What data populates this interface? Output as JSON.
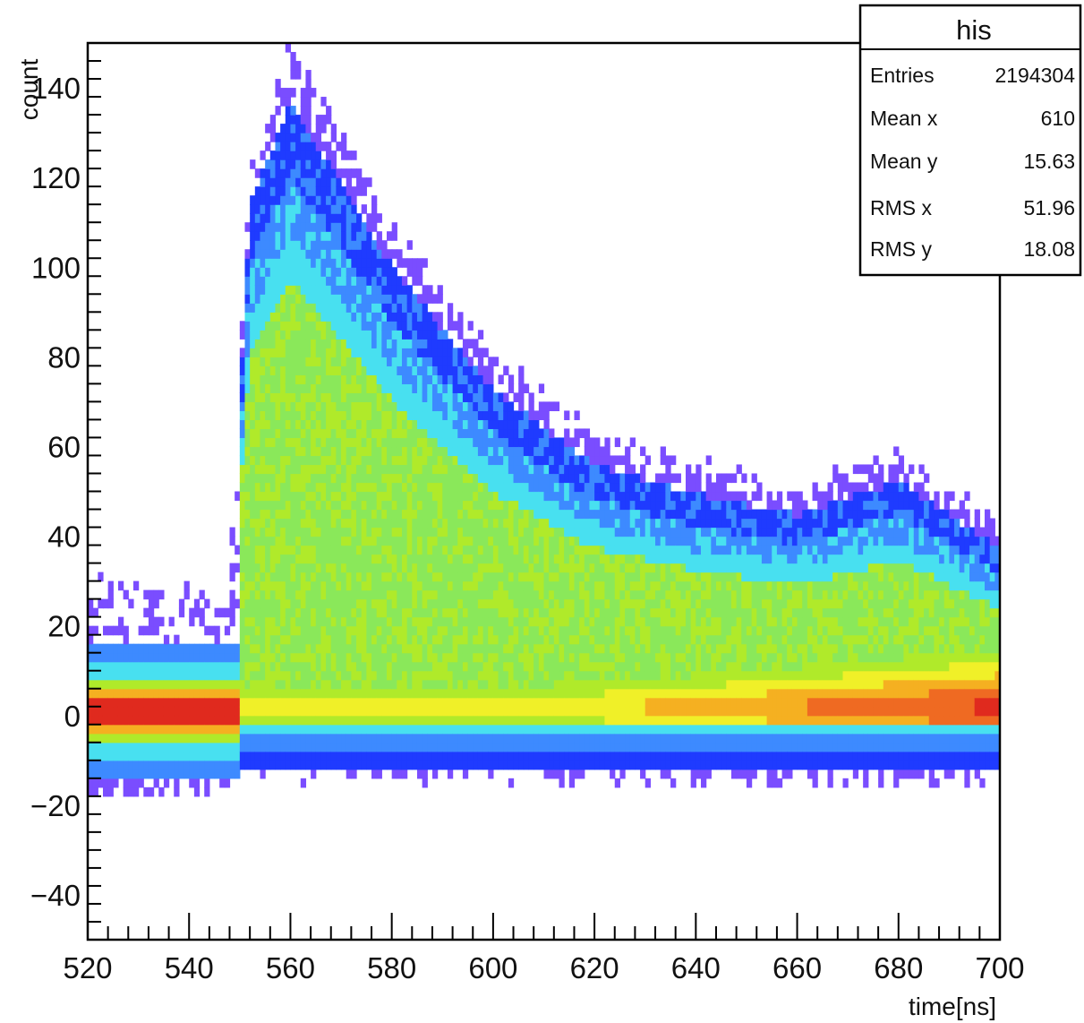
{
  "chart_data": {
    "type": "heatmap",
    "title": "",
    "xlabel": "time[ns]",
    "ylabel": "count",
    "xlim": [
      520,
      700
    ],
    "ylim": [
      -50,
      150
    ],
    "x_ticks": [
      520,
      540,
      560,
      580,
      600,
      620,
      640,
      660,
      680,
      700
    ],
    "y_ticks": [
      -40,
      -20,
      0,
      20,
      40,
      60,
      80,
      100,
      120,
      140
    ],
    "bin_width_x": 1,
    "bin_width_y": 2,
    "palette": [
      "#7a4dff",
      "#1f3bff",
      "#3d8aff",
      "#48e0f0",
      "#8ae85a",
      "#b0ea2a",
      "#f0f028",
      "#f5b021",
      "#ef6a22",
      "#e02a1e"
    ],
    "description_points": [
      {
        "x": 520,
        "y_core": 1,
        "y_max": 30,
        "y_min": -18
      },
      {
        "x": 548,
        "y_core": 1,
        "y_max": 28,
        "y_min": -16
      },
      {
        "x": 552,
        "y_core": 40,
        "y_max": 125,
        "y_min": -12
      },
      {
        "x": 560,
        "y_core": 35,
        "y_max": 150,
        "y_min": -14
      },
      {
        "x": 580,
        "y_core": 25,
        "y_max": 110,
        "y_min": -14
      },
      {
        "x": 600,
        "y_core": 18,
        "y_max": 80,
        "y_min": -14
      },
      {
        "x": 620,
        "y_core": 12,
        "y_max": 62,
        "y_min": -15
      },
      {
        "x": 640,
        "y_core": 8,
        "y_max": 55,
        "y_min": -15
      },
      {
        "x": 660,
        "y_core": 5,
        "y_max": 50,
        "y_min": -15
      },
      {
        "x": 680,
        "y_core": 3,
        "y_max": 58,
        "y_min": -15
      },
      {
        "x": 700,
        "y_core": 2,
        "y_max": 42,
        "y_min": -15
      }
    ]
  },
  "stats": {
    "title": "his",
    "rows": [
      {
        "label": "Entries",
        "value": "2194304"
      },
      {
        "label": "Mean x",
        "value": "610"
      },
      {
        "label": "Mean y",
        "value": "15.63"
      },
      {
        "label": "RMS x",
        "value": "51.96"
      },
      {
        "label": "RMS y",
        "value": "18.08"
      }
    ]
  }
}
